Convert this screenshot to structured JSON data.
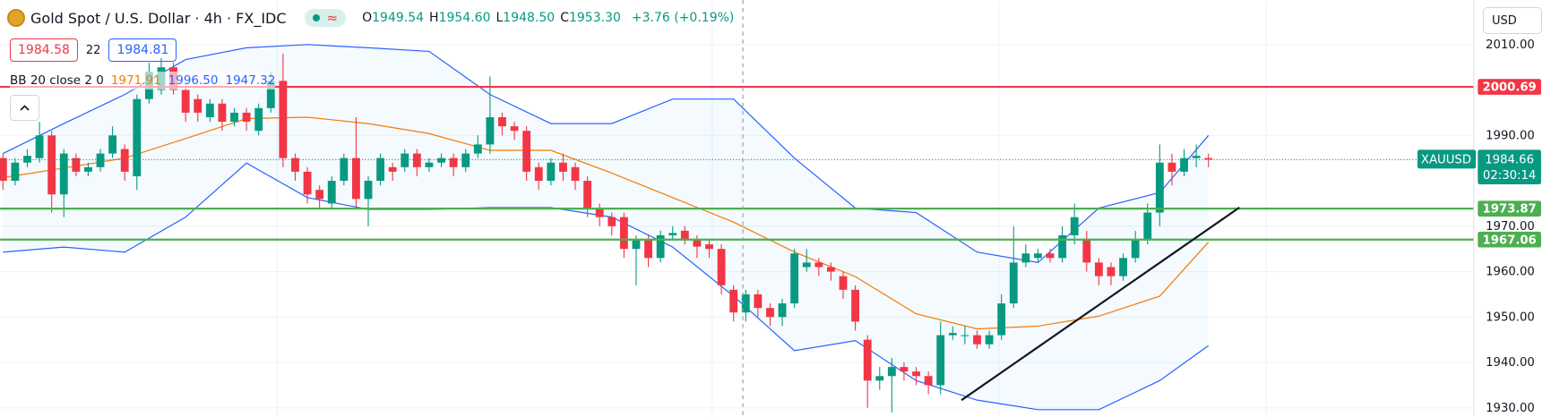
{
  "header": {
    "title": "Gold Spot / U.S. Dollar · 4h · FX_IDC",
    "status_icon": "≈",
    "ohlc": [
      {
        "key": "O",
        "value": "1949.54"
      },
      {
        "key": "H",
        "value": "1954.60"
      },
      {
        "key": "L",
        "value": "1948.50"
      },
      {
        "key": "C",
        "value": "1953.30"
      }
    ],
    "change": "+3.76 (+0.19%)",
    "bid": "1984.58",
    "spread": "22",
    "ask": "1984.81",
    "indicator": {
      "label": "BB 20 close 2 0",
      "values": [
        {
          "value": "1971.91",
          "color": "#f57c00"
        },
        {
          "value": "1996.50",
          "color": "#2962ff"
        },
        {
          "value": "1947.32",
          "color": "#2962ff"
        }
      ]
    },
    "currency": "USD"
  },
  "chart_data": {
    "type": "candlestick",
    "ylim": [
      1928,
      2019.8
    ],
    "yticks": [
      {
        "value": 2010,
        "label": "2010.00"
      },
      {
        "value": 1990,
        "label": "1990.00"
      },
      {
        "value": 1970,
        "label": "1970.00"
      },
      {
        "value": 1960,
        "label": "1960.00"
      },
      {
        "value": 1950,
        "label": "1950.00"
      },
      {
        "value": 1940,
        "label": "1940.00"
      },
      {
        "value": 1930,
        "label": "1930.00"
      }
    ],
    "up_color": "#089981",
    "down_color": "#f23645",
    "open": [
      1985,
      1980,
      1984,
      1985,
      1990,
      1977,
      1985,
      1982,
      1983,
      1986,
      1987,
      1981,
      1998,
      2000,
      2005,
      2000,
      1998,
      1994,
      1997,
      1993,
      1995,
      1991,
      1996,
      2002,
      1985,
      1982,
      1978,
      1975,
      1980,
      1985,
      1976,
      1980,
      1983,
      1983,
      1986,
      1983,
      1984,
      1985,
      1983,
      1986,
      1988,
      1994,
      1992,
      1991,
      1983,
      1980,
      1984,
      1983,
      1980,
      1974,
      1972,
      1972,
      1965,
      1967,
      1963,
      1968,
      1969,
      1967,
      1966,
      1965,
      1956,
      1951,
      1955,
      1952,
      1950,
      1953,
      1961,
      1962,
      1961,
      1959,
      1956,
      1945,
      1936,
      1937,
      1939,
      1938,
      1937,
      1935,
      1946,
      1946,
      1946,
      1944,
      1946,
      1953,
      1962,
      1963,
      1964,
      1963,
      1968,
      1967,
      1962,
      1961,
      1959,
      1963,
      1967,
      1973,
      1984,
      1982,
      1985,
      1985
    ],
    "high": [
      1986,
      1985,
      1987,
      1993,
      1991,
      1987,
      1986,
      1984,
      1987,
      1992,
      1988,
      1999,
      2006,
      2007,
      2006,
      2001,
      1999,
      1998,
      1998,
      1996,
      1996,
      1997,
      2004,
      2008,
      1986,
      1983,
      1979,
      1981,
      1986,
      1994,
      1981,
      1986,
      1984,
      1987,
      1987,
      1985,
      1986,
      1986,
      1987,
      1990,
      2003,
      1995,
      1993,
      1992,
      1984,
      1985,
      1986,
      1984,
      1981,
      1975,
      1973,
      1973,
      1968,
      1968,
      1969,
      1970,
      1970,
      1968,
      1967,
      1966,
      1957,
      1956,
      1956,
      1953,
      1954,
      1965,
      1965,
      1963,
      1962,
      1960,
      1957,
      1946,
      1939,
      1941,
      1940,
      1939,
      1938,
      1949,
      1948,
      1948,
      1947,
      1947,
      1955,
      1970,
      1966,
      1965,
      1965,
      1970,
      1975,
      1969,
      1963,
      1962,
      1964,
      1969,
      1975,
      1988,
      1986,
      1987,
      1988,
      1986
    ],
    "low": [
      1978,
      1979,
      1983,
      1984,
      1973,
      1972,
      1981,
      1981,
      1982,
      1985,
      1980,
      1978,
      1997,
      1999,
      1999,
      1993,
      1993,
      1993,
      1991,
      1992,
      1991,
      1990,
      1995,
      1983,
      1980,
      1975,
      1974,
      1974,
      1979,
      1974,
      1970,
      1979,
      1980,
      1982,
      1981,
      1982,
      1983,
      1981,
      1982,
      1985,
      1986,
      1990,
      1989,
      1980,
      1978,
      1979,
      1980,
      1978,
      1972,
      1970,
      1968,
      1963,
      1957,
      1961,
      1962,
      1967,
      1966,
      1963,
      1963,
      1955,
      1949,
      1949,
      1950,
      1948,
      1948,
      1952,
      1960,
      1959,
      1958,
      1954,
      1947,
      1930,
      1934,
      1929,
      1936,
      1935,
      1933,
      1933,
      1945,
      1944,
      1943,
      1943,
      1945,
      1952,
      1961,
      1962,
      1962,
      1962,
      1966,
      1960,
      1957,
      1957,
      1958,
      1962,
      1966,
      1970,
      1979,
      1981,
      1983,
      1983
    ],
    "close": [
      1980,
      1984,
      1985.5,
      1990,
      1977,
      1986,
      1982,
      1983,
      1986,
      1990,
      1982,
      1998,
      2004,
      2005,
      2000,
      1995,
      1995,
      1997,
      1993,
      1995,
      1993,
      1996,
      2002,
      1985,
      1982,
      1977,
      1976,
      1980,
      1985,
      1976,
      1980,
      1985,
      1982,
      1986,
      1983,
      1984,
      1985,
      1983,
      1986,
      1988,
      1994,
      1992,
      1991,
      1982,
      1980,
      1984,
      1982,
      1980,
      1974,
      1972,
      1970,
      1965,
      1967,
      1963,
      1968,
      1968.5,
      1967,
      1965.5,
      1965,
      1957,
      1951,
      1955,
      1952,
      1950,
      1953,
      1964,
      1962,
      1961,
      1960,
      1956,
      1949,
      1936,
      1937,
      1939,
      1938,
      1937,
      1935,
      1946,
      1946.5,
      1946,
      1944,
      1946,
      1953,
      1962,
      1964,
      1964,
      1963,
      1968,
      1972,
      1962,
      1959,
      1959,
      1963,
      1967,
      1973,
      1984,
      1982,
      1985,
      1985.5,
      1984.66
    ],
    "bb": {
      "x": [
        0,
        5,
        10,
        15,
        20,
        25,
        30,
        35,
        40,
        45,
        50,
        55,
        60,
        65,
        70,
        75,
        80,
        85,
        90,
        95,
        99
      ],
      "basis": [
        1980.7,
        1982.8,
        1985,
        1989.3,
        1993.7,
        1994,
        1992.6,
        1990.4,
        1986.7,
        1986.7,
        1981.7,
        1976.3,
        1970.9,
        1964.3,
        1958.9,
        1950.7,
        1947.4,
        1948,
        1950.2,
        1954.6,
        1966.5
      ],
      "upper": [
        1986,
        1992.6,
        1999,
        2006.7,
        2009.3,
        2010,
        2009.3,
        2008.5,
        1999,
        1992.6,
        1992.6,
        1998,
        1998,
        1985,
        1974,
        1973,
        1964.3,
        1962,
        1974,
        1977.4,
        1990
      ],
      "lower": [
        1964.3,
        1965.4,
        1964.3,
        1972,
        1983.9,
        1976.3,
        1973.7,
        1973.7,
        1974.1,
        1974.1,
        1972,
        1965.4,
        1954.6,
        1942.6,
        1944.8,
        1936,
        1931.7,
        1929.6,
        1929.6,
        1936,
        1943.7
      ]
    },
    "levels": [
      {
        "value": 2000.69,
        "color": "#f23645"
      },
      {
        "value": 1973.87,
        "color": "#4caf50"
      },
      {
        "value": 1967.06,
        "color": "#4caf50"
      }
    ],
    "last": {
      "symbol": "XAUUSD",
      "value": 1984.66,
      "countdown": "02:30:14",
      "color": "#089981"
    }
  }
}
